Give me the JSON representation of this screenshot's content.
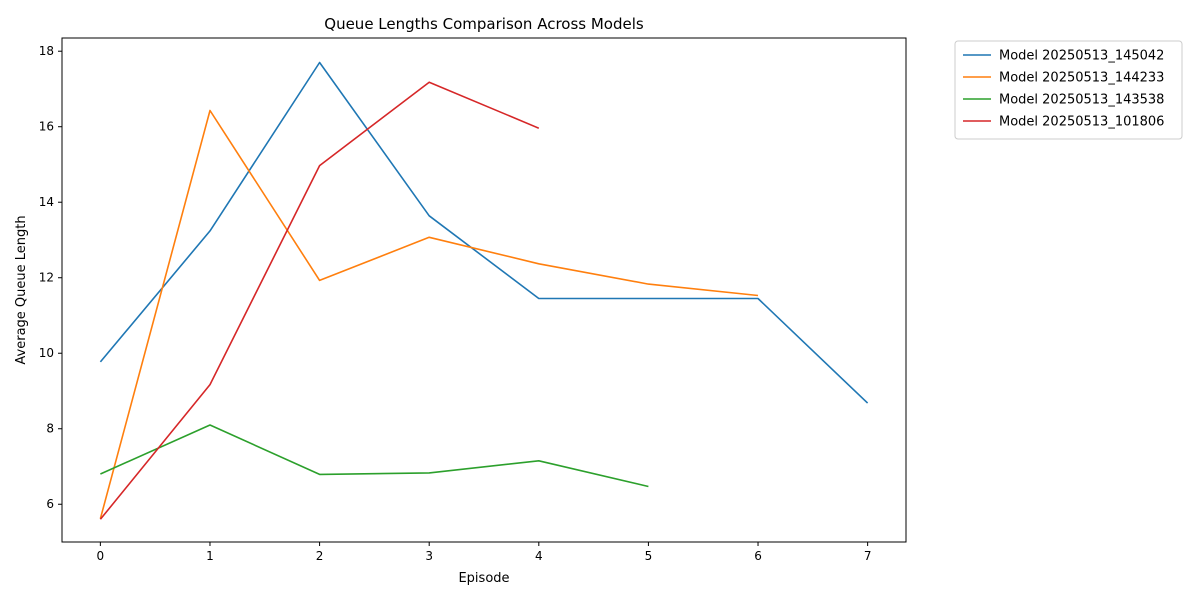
{
  "chart_data": {
    "type": "line",
    "title": "Queue Lengths Comparison Across Models",
    "xlabel": "Episode",
    "ylabel": "Average Queue Length",
    "xlim": [
      -0.35,
      7.35
    ],
    "ylim": [
      5.0,
      18.35
    ],
    "xticks": [
      0,
      1,
      2,
      3,
      4,
      5,
      6,
      7
    ],
    "yticks": [
      6,
      8,
      10,
      12,
      14,
      16,
      18
    ],
    "grid": false,
    "legend_position": "outside-top-right",
    "series": [
      {
        "name": "Model 20250513_145042",
        "color": "#1f77b4",
        "x": [
          0,
          1,
          2,
          3,
          4,
          5,
          6,
          7
        ],
        "values": [
          9.77,
          13.24,
          17.7,
          13.64,
          11.45,
          11.45,
          11.45,
          8.68
        ]
      },
      {
        "name": "Model 20250513_144233",
        "color": "#ff7f0e",
        "x": [
          0,
          1,
          2,
          3,
          4,
          5,
          6
        ],
        "values": [
          5.62,
          16.43,
          11.93,
          13.07,
          12.37,
          11.83,
          11.53
        ]
      },
      {
        "name": "Model 20250513_143538",
        "color": "#2ca02c",
        "x": [
          0,
          1,
          2,
          3,
          4,
          5
        ],
        "values": [
          6.8,
          8.1,
          6.79,
          6.83,
          7.15,
          6.47
        ]
      },
      {
        "name": "Model 20250513_101806",
        "color": "#d62728",
        "x": [
          0,
          1,
          2,
          3,
          4
        ],
        "values": [
          5.6,
          9.17,
          14.97,
          17.18,
          15.96
        ]
      }
    ]
  }
}
